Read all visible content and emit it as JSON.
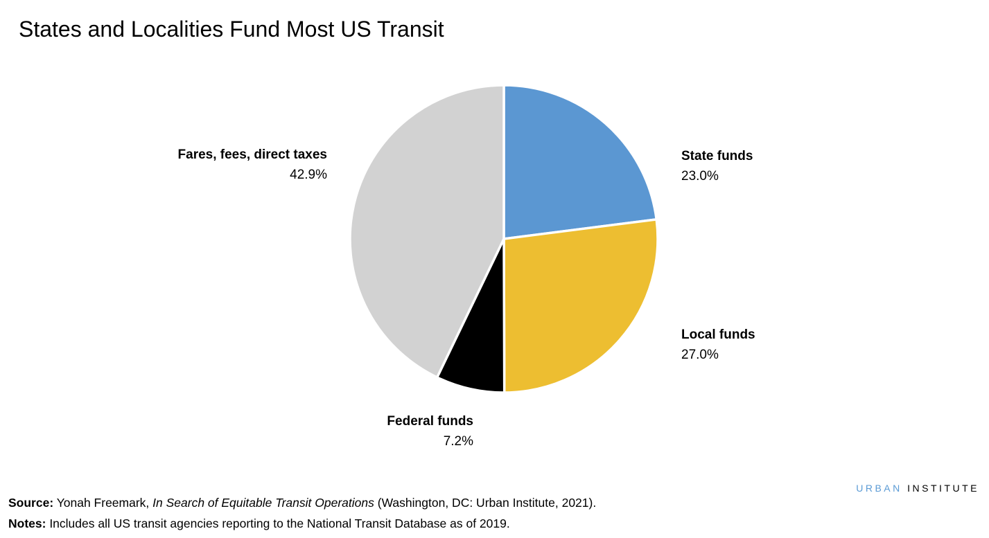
{
  "chart_data": {
    "type": "pie",
    "title": "States and Localities Fund Most US Transit",
    "start_angle": "12 o'clock",
    "direction": "clockwise",
    "slices": [
      {
        "label": "State funds",
        "value": 23.0,
        "value_label": "23.0%",
        "color": "#5b97d2"
      },
      {
        "label": "Local funds",
        "value": 27.0,
        "value_label": "27.0%",
        "color": "#edbe31"
      },
      {
        "label": "Federal funds",
        "value": 7.2,
        "value_label": "7.2%",
        "color": "#000000"
      },
      {
        "label": "Fares, fees, direct taxes",
        "value": 42.9,
        "value_label": "42.9%",
        "color": "#d2d2d2"
      }
    ]
  },
  "logo": {
    "part1": "URBAN",
    "part2": "INSTITUTE"
  },
  "footer": {
    "source_label": "Source:",
    "source_text_1": " Yonah Freemark, ",
    "source_italic": "In Search of Equitable Transit Operations",
    "source_text_2": " (Washington, DC: Urban Institute, 2021).",
    "notes_label": "Notes:",
    "notes_text": " Includes all US transit agencies reporting to the National Transit Database as of 2019."
  }
}
